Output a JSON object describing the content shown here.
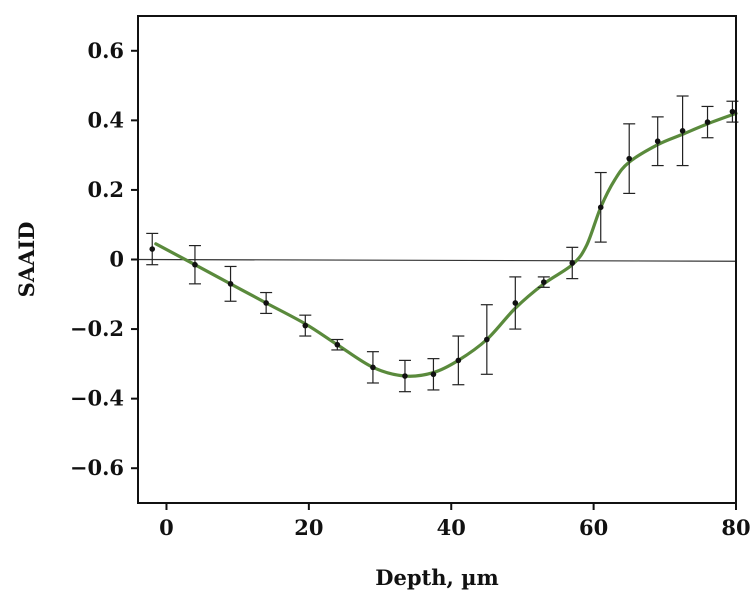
{
  "chart_data": {
    "type": "line",
    "xlabel": "Depth, µm",
    "ylabel": "SAAID",
    "xlim": [
      -4,
      80
    ],
    "ylim": [
      -0.7,
      0.7
    ],
    "x_ticks": [
      0,
      20,
      40,
      60,
      80
    ],
    "y_ticks": [
      -0.6,
      -0.4,
      -0.2,
      0,
      0.2,
      0.4,
      0.6
    ],
    "x_tick_labels": [
      "0",
      "20",
      "40",
      "60",
      "80"
    ],
    "y_tick_labels": [
      "−0.6",
      "−0.4",
      "−0.2",
      "0",
      "0.2",
      "0.4",
      "0.6"
    ],
    "grid": false,
    "baseline": {
      "from": [
        -4,
        0
      ],
      "to": [
        80,
        -0.005
      ]
    },
    "series": [
      {
        "points": [
          {
            "x": -2,
            "y": 0.03,
            "err": 0.045
          },
          {
            "x": 4,
            "y": -0.015,
            "err": 0.055
          },
          {
            "x": 9,
            "y": -0.07,
            "err": 0.05
          },
          {
            "x": 14,
            "y": -0.125,
            "err": 0.03
          },
          {
            "x": 19.5,
            "y": -0.19,
            "err": 0.03
          },
          {
            "x": 24,
            "y": -0.245,
            "err": 0.015
          },
          {
            "x": 29,
            "y": -0.31,
            "err": 0.045
          },
          {
            "x": 33.5,
            "y": -0.335,
            "err": 0.045
          },
          {
            "x": 37.5,
            "y": -0.33,
            "err": 0.045
          },
          {
            "x": 41,
            "y": -0.29,
            "err": 0.07
          },
          {
            "x": 45,
            "y": -0.23,
            "err": 0.1
          },
          {
            "x": 49,
            "y": -0.125,
            "err": 0.075
          },
          {
            "x": 53,
            "y": -0.065,
            "err": 0.015
          },
          {
            "x": 57,
            "y": -0.01,
            "err": 0.045
          },
          {
            "x": 61,
            "y": 0.15,
            "err": 0.1
          },
          {
            "x": 65,
            "y": 0.29,
            "err": 0.1
          },
          {
            "x": 69,
            "y": 0.34,
            "err": 0.07
          },
          {
            "x": 72.5,
            "y": 0.37,
            "err": 0.1
          },
          {
            "x": 76,
            "y": 0.395,
            "err": 0.045
          },
          {
            "x": 79.5,
            "y": 0.425,
            "err": 0.03
          }
        ]
      }
    ],
    "fit_curve": {
      "color": "#5a8a3c",
      "points": [
        [
          -1.5,
          0.045
        ],
        [
          4,
          -0.015
        ],
        [
          9,
          -0.07
        ],
        [
          14,
          -0.125
        ],
        [
          19.5,
          -0.185
        ],
        [
          24,
          -0.245
        ],
        [
          29,
          -0.31
        ],
        [
          33.5,
          -0.335
        ],
        [
          37.5,
          -0.325
        ],
        [
          41,
          -0.29
        ],
        [
          45,
          -0.23
        ],
        [
          49,
          -0.14
        ],
        [
          53,
          -0.07
        ],
        [
          57,
          -0.015
        ],
        [
          59,
          0.04
        ],
        [
          61,
          0.15
        ],
        [
          63,
          0.23
        ],
        [
          65,
          0.28
        ],
        [
          69,
          0.33
        ],
        [
          72.5,
          0.36
        ],
        [
          76,
          0.39
        ],
        [
          80,
          0.42
        ]
      ]
    },
    "colors": {
      "axis": "#111111",
      "markers": "#111111",
      "errorbars": "#222222",
      "fit": "#5a8a3c",
      "baseline": "#333333"
    }
  }
}
